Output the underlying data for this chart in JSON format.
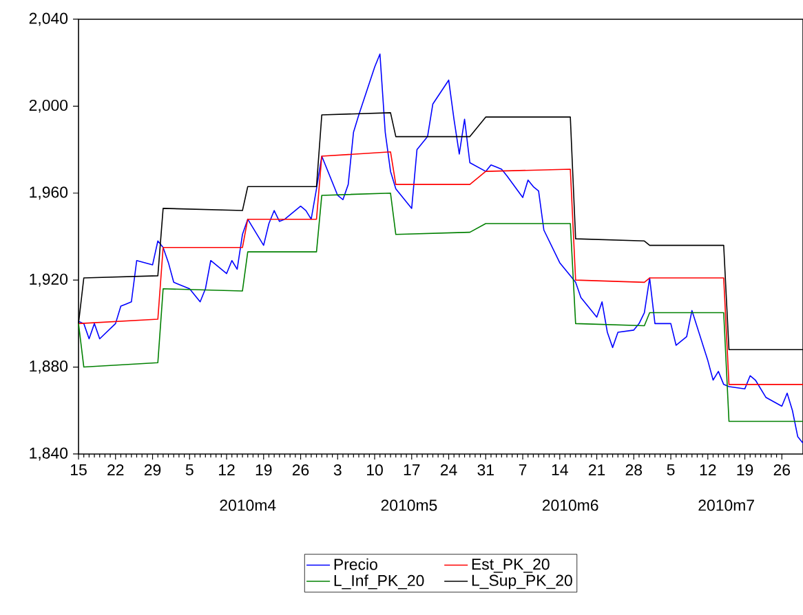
{
  "chart_data": {
    "type": "line",
    "xlim": [
      "2010-03-15",
      "2010-07-30"
    ],
    "ylim": [
      1840,
      2040
    ],
    "xticks": [
      {
        "value": "2010-03-15",
        "label": "15"
      },
      {
        "value": "2010-03-22",
        "label": "22"
      },
      {
        "value": "2010-03-29",
        "label": "29"
      },
      {
        "value": "2010-04-05",
        "label": "5"
      },
      {
        "value": "2010-04-12",
        "label": "12"
      },
      {
        "value": "2010-04-19",
        "label": "19"
      },
      {
        "value": "2010-04-26",
        "label": "26"
      },
      {
        "value": "2010-05-03",
        "label": "3"
      },
      {
        "value": "2010-05-10",
        "label": "10"
      },
      {
        "value": "2010-05-17",
        "label": "17"
      },
      {
        "value": "2010-05-24",
        "label": "24"
      },
      {
        "value": "2010-05-31",
        "label": "31"
      },
      {
        "value": "2010-06-07",
        "label": "7"
      },
      {
        "value": "2010-06-14",
        "label": "14"
      },
      {
        "value": "2010-06-21",
        "label": "21"
      },
      {
        "value": "2010-06-28",
        "label": "28"
      },
      {
        "value": "2010-07-05",
        "label": "5"
      },
      {
        "value": "2010-07-12",
        "label": "12"
      },
      {
        "value": "2010-07-19",
        "label": "19"
      },
      {
        "value": "2010-07-26",
        "label": "26"
      }
    ],
    "yticks": [
      {
        "value": 1840,
        "label": "1,840"
      },
      {
        "value": 1880,
        "label": "1,880"
      },
      {
        "value": 1920,
        "label": "1,920"
      },
      {
        "value": 1960,
        "label": "1,960"
      },
      {
        "value": 2000,
        "label": "2,000"
      },
      {
        "value": 2040,
        "label": "2,040"
      }
    ],
    "annotations": [
      "2010m4",
      "2010m5",
      "2010m6",
      "2010m7"
    ],
    "legend": "bottom",
    "line_style": "solid",
    "x": [
      "2010-03-15",
      "2010-03-16",
      "2010-03-17",
      "2010-03-18",
      "2010-03-19",
      "2010-03-22",
      "2010-03-23",
      "2010-03-24",
      "2010-03-25",
      "2010-03-26",
      "2010-03-29",
      "2010-03-30",
      "2010-03-31",
      "2010-04-01",
      "2010-04-02",
      "2010-04-05",
      "2010-04-06",
      "2010-04-07",
      "2010-04-08",
      "2010-04-09",
      "2010-04-12",
      "2010-04-13",
      "2010-04-14",
      "2010-04-15",
      "2010-04-16",
      "2010-04-19",
      "2010-04-20",
      "2010-04-21",
      "2010-04-22",
      "2010-04-23",
      "2010-04-26",
      "2010-04-27",
      "2010-04-28",
      "2010-04-29",
      "2010-04-30",
      "2010-05-03",
      "2010-05-04",
      "2010-05-05",
      "2010-05-06",
      "2010-05-07",
      "2010-05-10",
      "2010-05-11",
      "2010-05-12",
      "2010-05-13",
      "2010-05-14",
      "2010-05-17",
      "2010-05-18",
      "2010-05-19",
      "2010-05-20",
      "2010-05-21",
      "2010-05-24",
      "2010-05-25",
      "2010-05-26",
      "2010-05-27",
      "2010-05-28",
      "2010-05-31",
      "2010-06-01",
      "2010-06-02",
      "2010-06-03",
      "2010-06-04",
      "2010-06-07",
      "2010-06-08",
      "2010-06-09",
      "2010-06-10",
      "2010-06-11",
      "2010-06-14",
      "2010-06-15",
      "2010-06-16",
      "2010-06-17",
      "2010-06-18",
      "2010-06-21",
      "2010-06-22",
      "2010-06-23",
      "2010-06-24",
      "2010-06-25",
      "2010-06-28",
      "2010-06-29",
      "2010-06-30",
      "2010-07-01",
      "2010-07-02",
      "2010-07-05",
      "2010-07-06",
      "2010-07-07",
      "2010-07-08",
      "2010-07-09",
      "2010-07-12",
      "2010-07-13",
      "2010-07-14",
      "2010-07-15",
      "2010-07-16",
      "2010-07-19",
      "2010-07-20",
      "2010-07-21",
      "2010-07-22",
      "2010-07-23",
      "2010-07-26",
      "2010-07-27",
      "2010-07-28",
      "2010-07-29",
      "2010-07-30"
    ],
    "series": [
      {
        "name": "Precio",
        "color": "#0000ff",
        "values": [
          1901,
          1900,
          1893,
          1900,
          1893,
          1900,
          1908,
          1909,
          1910,
          1929,
          1927,
          1938,
          1935,
          1928,
          1919,
          1916,
          1913,
          1910,
          1916,
          1929,
          1923,
          1929,
          1925,
          1941,
          1948,
          1936,
          1946,
          1952,
          1947,
          1948,
          1954,
          1952,
          1948,
          1962,
          1977,
          1959,
          1957,
          1964,
          1988,
          1996,
          2018,
          2024,
          1988,
          1970,
          1962,
          1953,
          1980,
          1983,
          1986,
          2001,
          2012,
          1994,
          1978,
          1994,
          1974,
          1970,
          1973,
          1972,
          1971,
          1968,
          1958,
          1966,
          1963,
          1961,
          1943,
          1928,
          1925,
          1922,
          1919,
          1912,
          1903,
          1910,
          1896,
          1889,
          1896,
          1897,
          1900,
          1905,
          1921,
          1900,
          1900,
          1890,
          1892,
          1894,
          1906,
          1883,
          1874,
          1878,
          1872,
          1871,
          1870,
          1876,
          1874,
          1870,
          1866,
          1862,
          1868,
          1860,
          1848,
          1845
        ]
      },
      {
        "name": "Est_PK_20",
        "color": "#ff0000",
        "x": [
          "2010-03-15",
          "2010-03-30",
          "2010-03-31",
          "2010-04-15",
          "2010-04-16",
          "2010-04-29",
          "2010-04-30",
          "2010-05-13",
          "2010-05-14",
          "2010-05-28",
          "2010-05-31",
          "2010-06-16",
          "2010-06-17",
          "2010-06-30",
          "2010-07-01",
          "2010-07-15",
          "2010-07-16",
          "2010-07-30"
        ],
        "values": [
          1900,
          1902,
          1935,
          1935,
          1948,
          1948,
          1977,
          1979,
          1964,
          1964,
          1970,
          1971,
          1920,
          1919,
          1921,
          1921,
          1872,
          1872
        ]
      },
      {
        "name": "L_Inf_PK_20",
        "color": "#008000",
        "x": [
          "2010-03-15",
          "2010-03-16",
          "2010-03-30",
          "2010-03-31",
          "2010-04-15",
          "2010-04-16",
          "2010-04-29",
          "2010-04-30",
          "2010-05-13",
          "2010-05-14",
          "2010-05-28",
          "2010-05-31",
          "2010-06-16",
          "2010-06-17",
          "2010-06-30",
          "2010-07-01",
          "2010-07-15",
          "2010-07-16",
          "2010-07-30"
        ],
        "values": [
          1900,
          1880,
          1882,
          1916,
          1915,
          1933,
          1933,
          1959,
          1960,
          1941,
          1942,
          1946,
          1946,
          1900,
          1899,
          1905,
          1905,
          1855,
          1855
        ]
      },
      {
        "name": "L_Sup_PK_20",
        "color": "#000000",
        "x": [
          "2010-03-15",
          "2010-03-16",
          "2010-03-30",
          "2010-03-31",
          "2010-04-15",
          "2010-04-16",
          "2010-04-29",
          "2010-04-30",
          "2010-05-13",
          "2010-05-14",
          "2010-05-28",
          "2010-05-31",
          "2010-06-16",
          "2010-06-17",
          "2010-06-30",
          "2010-07-01",
          "2010-07-15",
          "2010-07-16",
          "2010-07-30"
        ],
        "values": [
          1900,
          1921,
          1922,
          1953,
          1952,
          1963,
          1963,
          1996,
          1997,
          1986,
          1986,
          1995,
          1995,
          1939,
          1938,
          1936,
          1936,
          1888,
          1888
        ]
      }
    ]
  }
}
